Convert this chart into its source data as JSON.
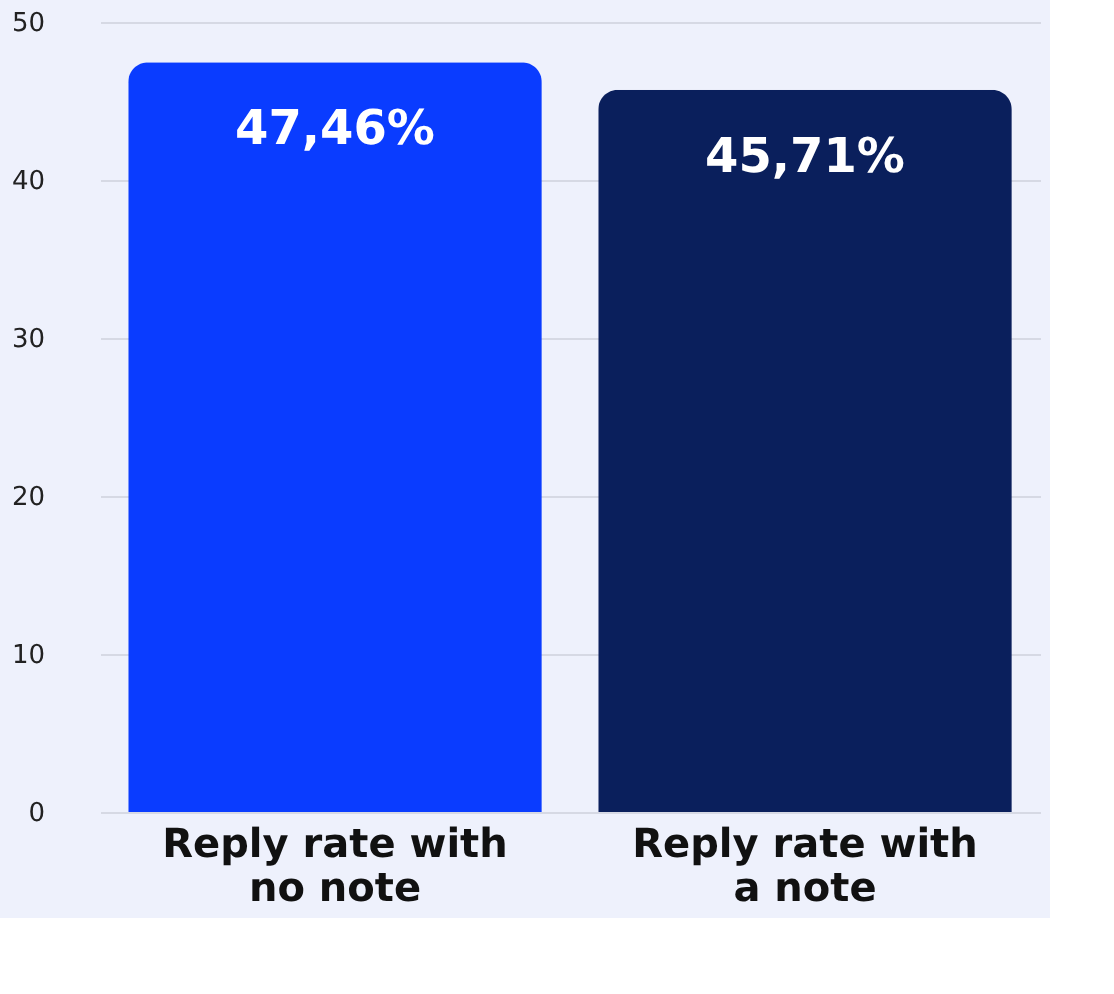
{
  "chart_data": {
    "type": "bar",
    "categories": [
      "Reply rate with no note",
      "Reply rate with a note"
    ],
    "values": [
      47.46,
      45.71
    ],
    "colors": [
      "#0a3cff",
      "#0a1f5c"
    ],
    "value_labels": [
      "47,46%",
      "45,71%"
    ],
    "ylim": [
      0,
      50
    ],
    "yticks": [
      0,
      10,
      20,
      30,
      40,
      50
    ],
    "grid": "y"
  }
}
